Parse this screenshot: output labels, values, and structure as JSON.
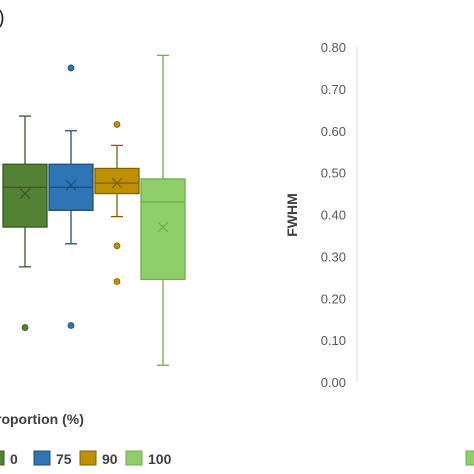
{
  "panel_label": ")",
  "chart_data": [
    {
      "type": "box",
      "xlabel": "roportion (%)",
      "legend": [
        {
          "label": "0",
          "color": "#385723"
        },
        {
          "label": "75",
          "color": "#2e75b6"
        },
        {
          "label": "90",
          "color": "#bf9000"
        },
        {
          "label": "100",
          "color": "#70ad47"
        }
      ],
      "series": [
        {
          "label": "0",
          "color": "#385723",
          "fill": "#548235",
          "whisker_low": 0.275,
          "q1": 0.37,
          "median": 0.465,
          "q3": 0.52,
          "whisker_high": 0.635,
          "mean": 0.45,
          "outliers": [
            0.13
          ]
        },
        {
          "label": "75",
          "color": "#1f4e79",
          "fill": "#2e75b6",
          "whisker_low": 0.33,
          "q1": 0.41,
          "median": 0.465,
          "q3": 0.52,
          "whisker_high": 0.6,
          "mean": 0.47,
          "outliers": [
            0.75,
            0.135
          ]
        },
        {
          "label": "90",
          "color": "#7f6000",
          "fill": "#bf9000",
          "whisker_low": 0.395,
          "q1": 0.45,
          "median": 0.475,
          "q3": 0.51,
          "whisker_high": 0.565,
          "mean": 0.475,
          "outliers": [
            0.615,
            0.325,
            0.24
          ]
        },
        {
          "label": "100",
          "color": "#70ad47",
          "fill": "#8fcf68",
          "whisker_low": 0.04,
          "q1": 0.245,
          "median": 0.43,
          "q3": 0.485,
          "whisker_high": 0.78,
          "mean": 0.37,
          "outliers": []
        }
      ]
    },
    {
      "type": "box",
      "ylabel": "FWHM",
      "ylim": [
        0.0,
        0.8
      ],
      "yticks": [
        "0.00",
        "0.10",
        "0.20",
        "0.30",
        "0.40",
        "0.50",
        "0.60",
        "0.70",
        "0.80"
      ],
      "series": [],
      "legend": [
        {
          "label": "",
          "color": "#70ad47"
        }
      ]
    }
  ]
}
